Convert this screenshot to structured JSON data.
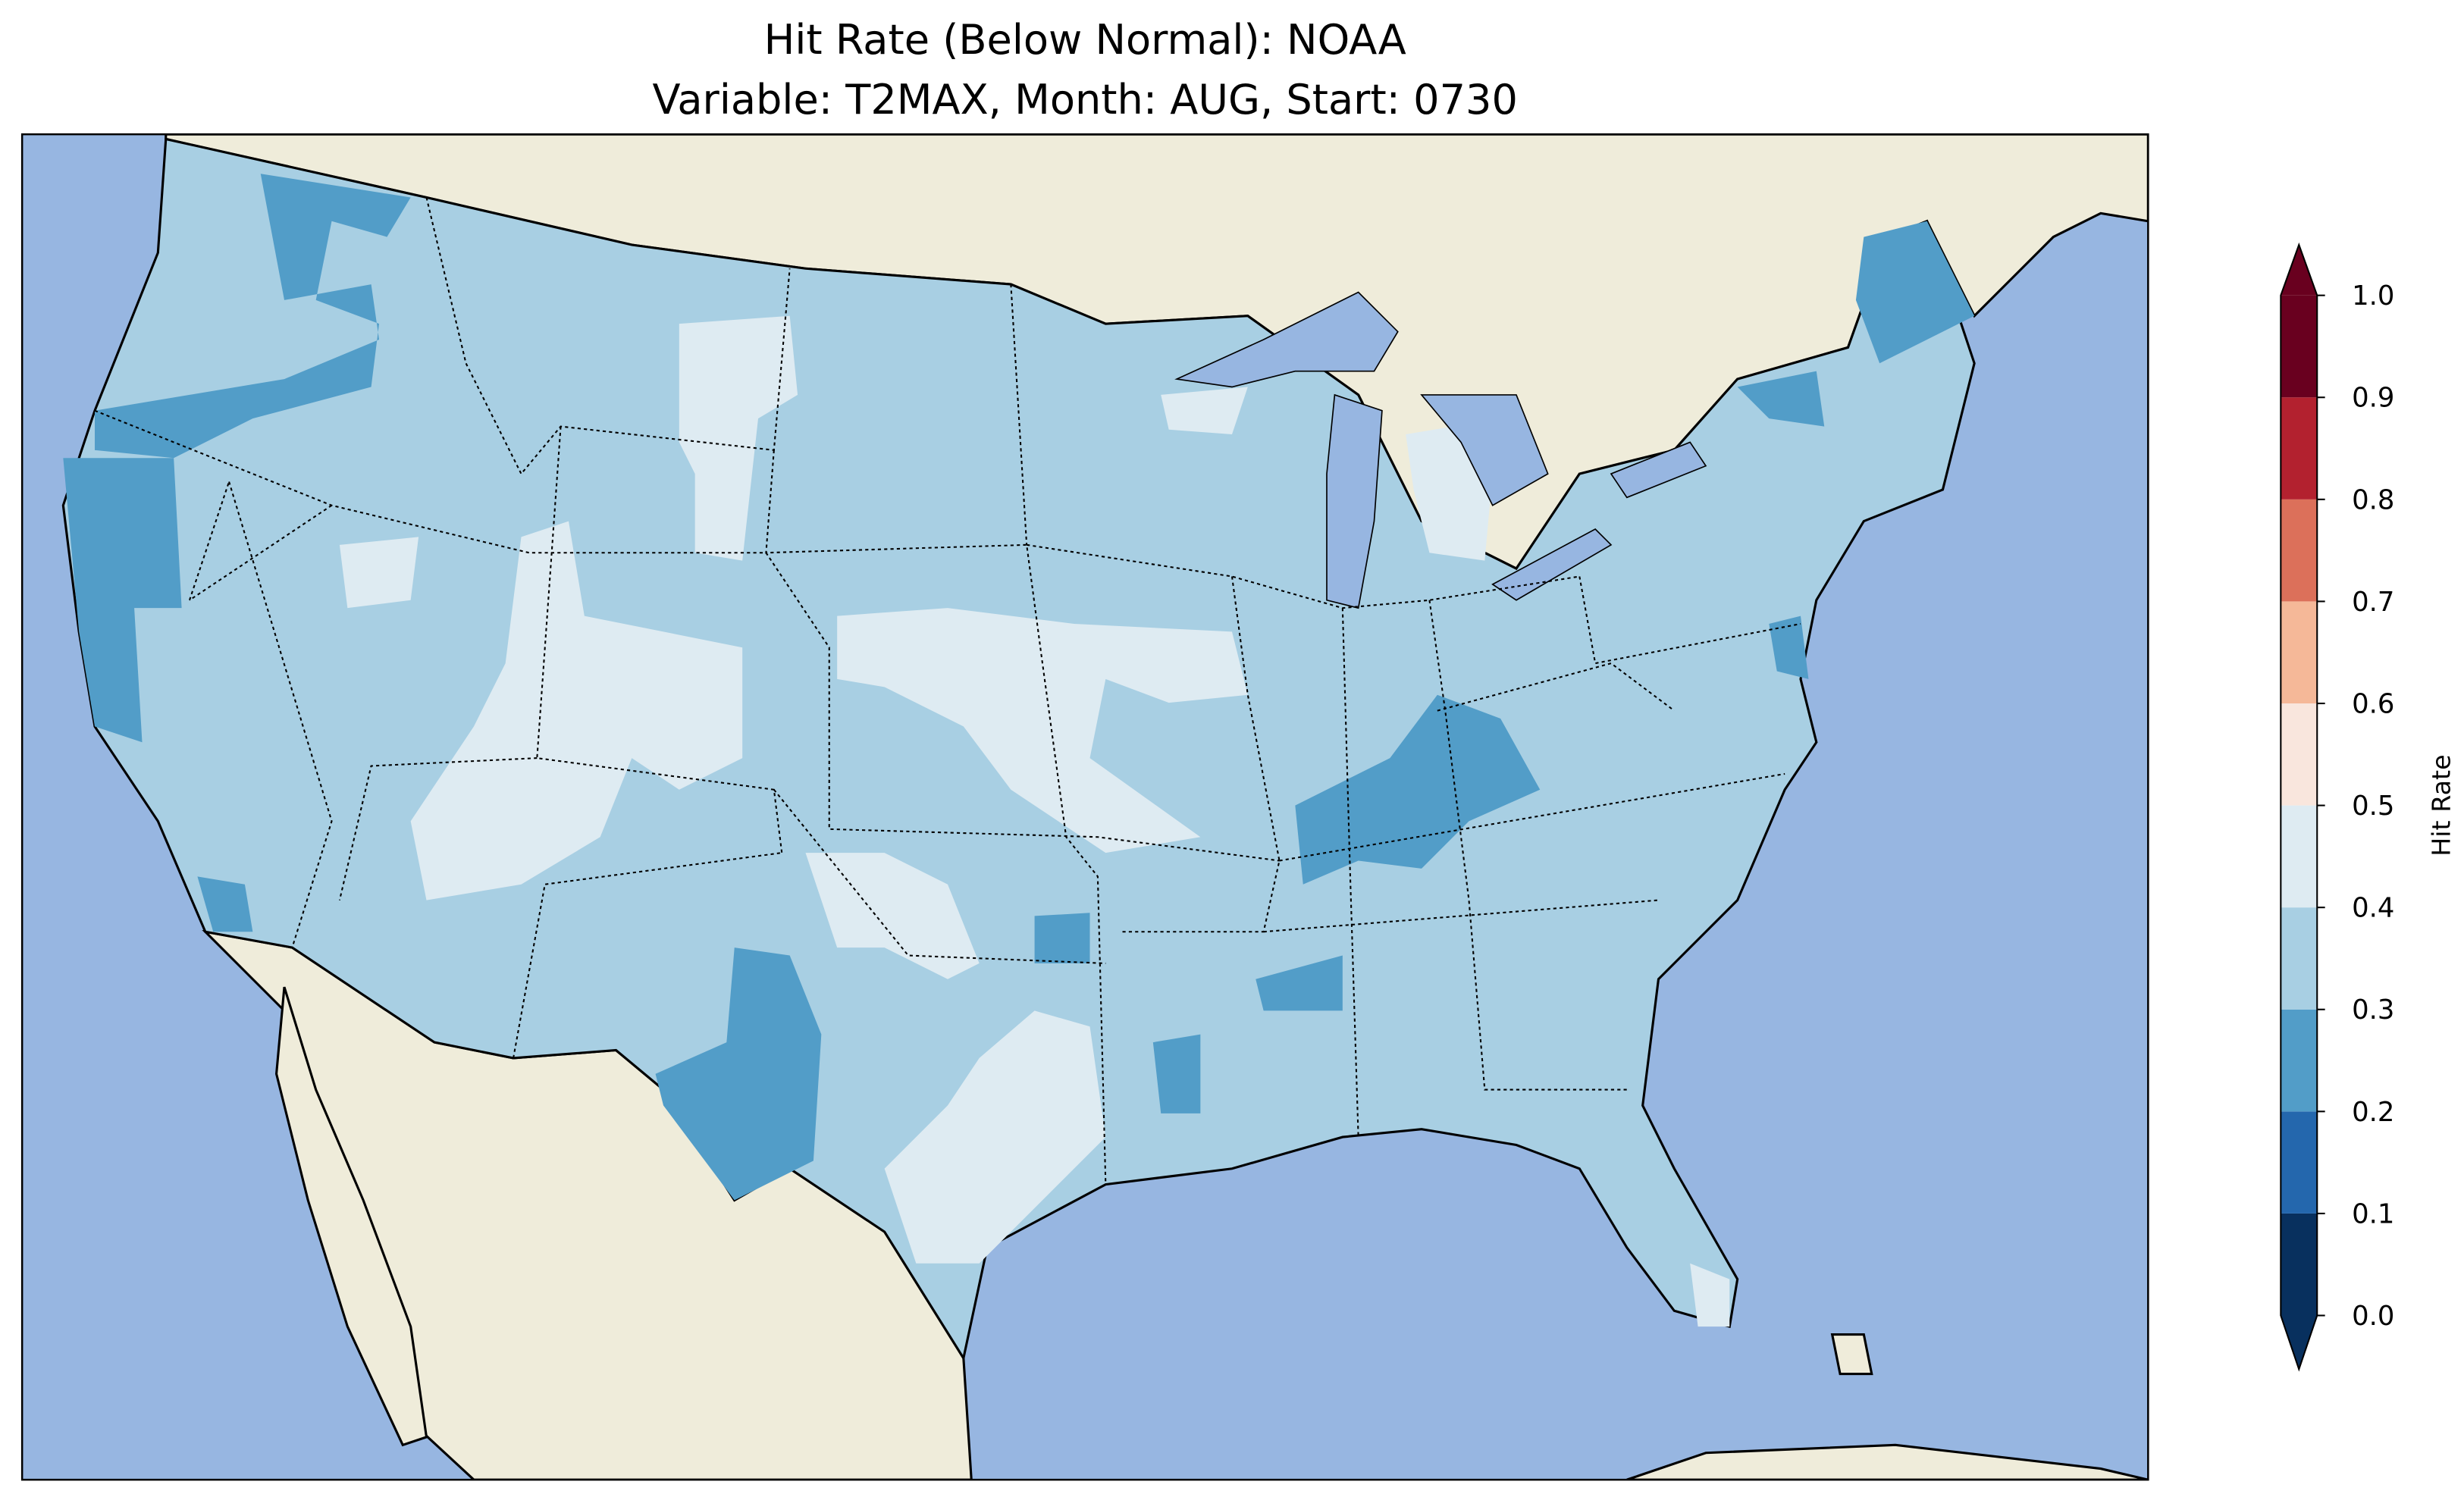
{
  "chart_data": {
    "type": "heatmap",
    "title": [
      "Hit Rate (Below Normal): NOAA",
      "Variable: T2MAX, Month: AUG, Start: 0730"
    ],
    "region": "Contiguous United States",
    "colorbar": {
      "label": "Hit Rate",
      "range": [
        0.0,
        1.0
      ],
      "extend": "both",
      "levels": [
        0.0,
        0.1,
        0.2,
        0.3,
        0.4,
        0.5,
        0.6,
        0.7,
        0.8,
        0.9,
        1.0
      ],
      "tick_labels": [
        "0.0",
        "0.1",
        "0.2",
        "0.3",
        "0.4",
        "0.5",
        "0.6",
        "0.7",
        "0.8",
        "0.9",
        "1.0"
      ],
      "colors": [
        "#08305e",
        "#2467ad",
        "#529dc8",
        "#a8cfe3",
        "#deebf2",
        "#f9e6dd",
        "#f5b898",
        "#dc705a",
        "#b3212f",
        "#69001f"
      ]
    }
  },
  "colors": {
    "ocean": "#97b6e1",
    "land": "#efecda"
  }
}
